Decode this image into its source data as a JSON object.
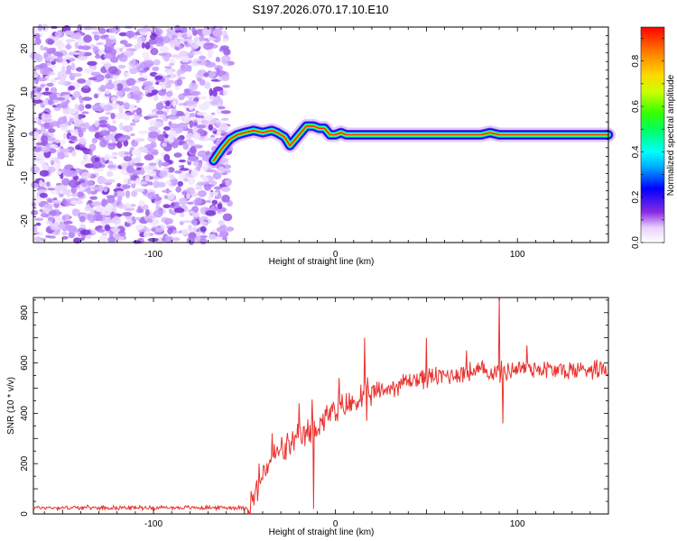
{
  "title": "S197.2026.070.17.10.E10",
  "chart_data": [
    {
      "type": "heatmap",
      "name": "spectrogram",
      "xlabel": "Height of straight line (km)",
      "ylabel": "Frequency (Hz)",
      "xlim": [
        -166,
        150
      ],
      "ylim": [
        -25,
        25
      ],
      "xticks": [
        -100,
        0,
        100
      ],
      "yticks": [
        20,
        10,
        0,
        -10,
        -20
      ],
      "noise_region_x": [
        -166,
        -58
      ],
      "ridge": {
        "description": "dominant frequency track",
        "x": [
          -67,
          -62,
          -58,
          -54,
          -50,
          -45,
          -40,
          -35,
          -32,
          -28,
          -25,
          -22,
          -19,
          -16,
          -12,
          -9,
          -6,
          -3,
          0,
          3,
          6,
          10,
          15,
          25,
          40,
          50,
          60,
          70,
          80,
          85,
          90,
          100,
          120,
          150
        ],
        "freq": [
          -6,
          -3,
          -1,
          0,
          0.5,
          1,
          0.5,
          1,
          0.5,
          -0.5,
          -2.5,
          -1,
          0.5,
          2,
          2,
          1.5,
          1.5,
          0,
          0,
          0.5,
          0,
          0,
          0,
          0,
          0,
          0,
          0,
          0,
          0,
          0.5,
          0,
          0,
          0,
          0
        ]
      },
      "colorbar": {
        "label": "Normalized spectral amplitude",
        "range": [
          0,
          0.95
        ],
        "ticks": [
          0.0,
          0.2,
          0.4,
          0.6,
          0.8
        ],
        "tick_labels": [
          "0.0",
          "0.2",
          "0.4",
          "0.6",
          "0.8"
        ]
      }
    },
    {
      "type": "line",
      "name": "snr",
      "xlabel": "Height of straight line (km)",
      "ylabel": "SNR (10 * v/v)",
      "xlim": [
        -166,
        150
      ],
      "ylim": [
        0,
        860
      ],
      "xticks": [
        -100,
        0,
        100
      ],
      "yticks": [
        0,
        200,
        400,
        600,
        800
      ],
      "color": "#e8332f",
      "series": [
        {
          "name": "SNR",
          "x": [
            -166,
            -140,
            -110,
            -80,
            -60,
            -48,
            -45,
            -42,
            -38,
            -35,
            -30,
            -25,
            -20,
            -15,
            -12,
            -10,
            -5,
            0,
            5,
            10,
            15,
            20,
            25,
            30,
            40,
            50,
            60,
            70,
            80,
            90,
            100,
            110,
            120,
            130,
            140,
            150
          ],
          "y": [
            25,
            25,
            25,
            25,
            25,
            25,
            60,
            120,
            180,
            230,
            250,
            270,
            300,
            320,
            330,
            350,
            390,
            400,
            430,
            440,
            470,
            480,
            490,
            500,
            530,
            540,
            550,
            560,
            570,
            560,
            580,
            580,
            570,
            570,
            580,
            580
          ],
          "spikes": [
            {
              "x": -42,
              "y": 200
            },
            {
              "x": -35,
              "y": 320
            },
            {
              "x": -20,
              "y": 440
            },
            {
              "x": -13,
              "y": 455
            },
            {
              "x": -12,
              "y": 20
            },
            {
              "x": 2,
              "y": 540
            },
            {
              "x": 16,
              "y": 700
            },
            {
              "x": 17,
              "y": 370
            },
            {
              "x": 50,
              "y": 700
            },
            {
              "x": 72,
              "y": 650
            },
            {
              "x": 90,
              "y": 860
            },
            {
              "x": 92,
              "y": 360
            },
            {
              "x": 105,
              "y": 670
            }
          ]
        }
      ]
    }
  ]
}
